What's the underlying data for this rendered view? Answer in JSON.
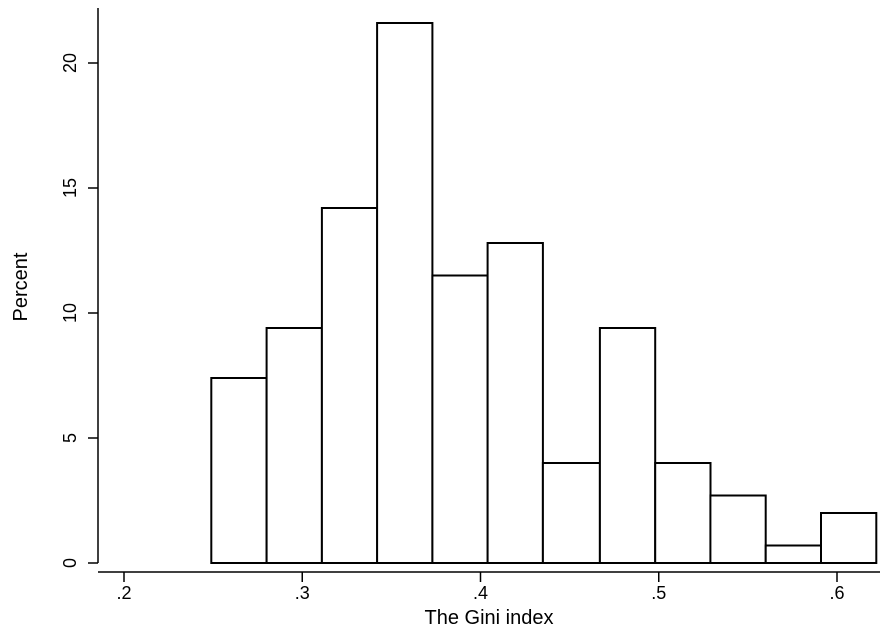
{
  "chart_data": {
    "type": "bar",
    "subtype": "histogram",
    "title": "",
    "xlabel": "The Gini index",
    "ylabel": "Percent",
    "xlim": [
      0.2,
      0.6
    ],
    "ylim": [
      0,
      20
    ],
    "x_ticks": [
      0.2,
      0.3,
      0.4,
      0.5,
      0.6
    ],
    "x_tick_labels": [
      ".2",
      ".3",
      ".4",
      ".5",
      ".6"
    ],
    "y_ticks": [
      0,
      5,
      10,
      15,
      20
    ],
    "y_tick_labels": [
      "0",
      "5",
      "10",
      "15",
      "20"
    ],
    "grid": false,
    "bins": [
      {
        "x0": 0.249,
        "x1": 0.28,
        "value": 7.4
      },
      {
        "x0": 0.28,
        "x1": 0.311,
        "value": 9.4
      },
      {
        "x0": 0.311,
        "x1": 0.342,
        "value": 14.2
      },
      {
        "x0": 0.342,
        "x1": 0.373,
        "value": 21.6
      },
      {
        "x0": 0.373,
        "x1": 0.404,
        "value": 11.5
      },
      {
        "x0": 0.404,
        "x1": 0.435,
        "value": 12.8
      },
      {
        "x0": 0.435,
        "x1": 0.467,
        "value": 4.0
      },
      {
        "x0": 0.467,
        "x1": 0.498,
        "value": 9.4
      },
      {
        "x0": 0.498,
        "x1": 0.529,
        "value": 4.0
      },
      {
        "x0": 0.529,
        "x1": 0.56,
        "value": 2.7
      },
      {
        "x0": 0.56,
        "x1": 0.591,
        "value": 0.7
      },
      {
        "x0": 0.591,
        "x1": 0.622,
        "value": 2.0
      }
    ]
  }
}
